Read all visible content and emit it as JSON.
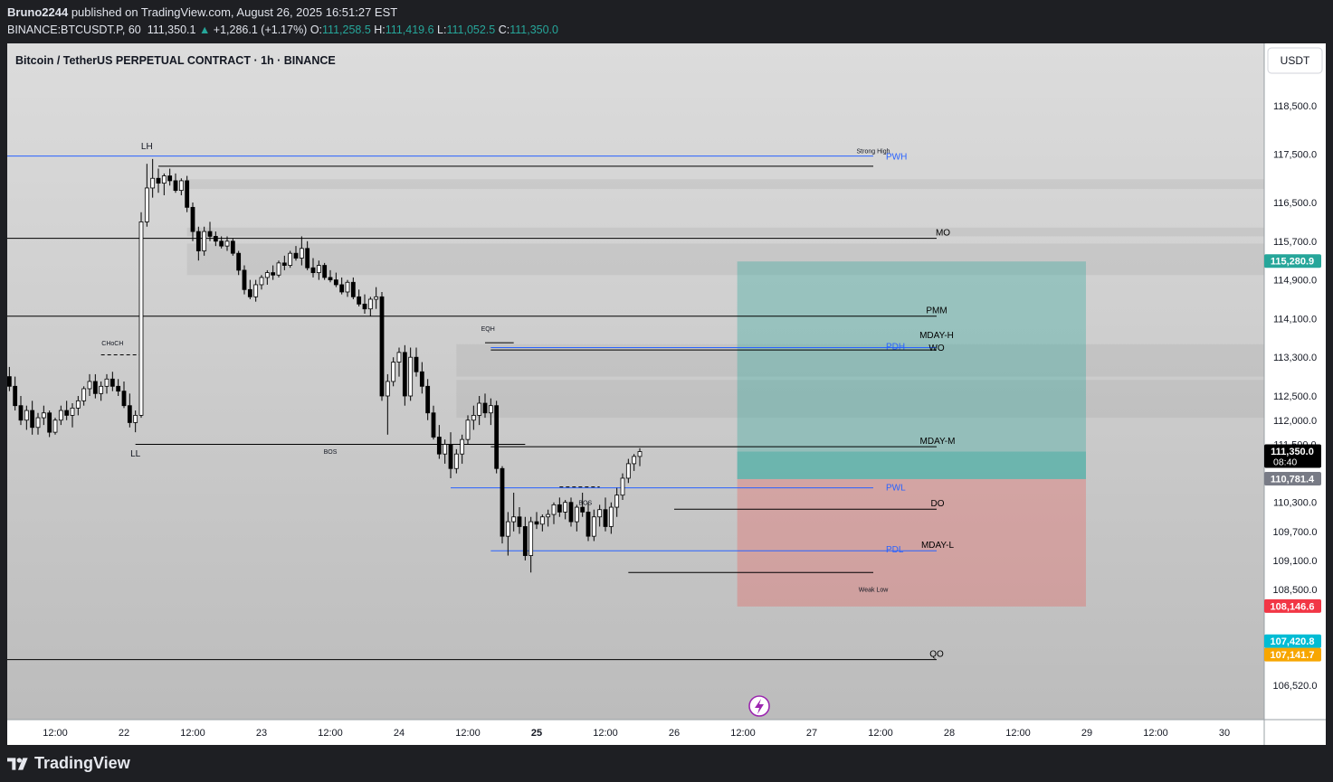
{
  "header": {
    "publisher_user": "Bruno2244",
    "publisher_text": " published on TradingView.com, August 26, 2025 16:51:27 EST",
    "symbol": "BINANCE:BTCUSDT.P, 60",
    "last": "111,350.1",
    "change": "+1,286.1 (+1.17%)",
    "open_label": "O:",
    "open": "111,258.5",
    "high_label": "H:",
    "high": "111,419.6",
    "low_label": "L:",
    "low": "111,052.5",
    "close_label": "C:",
    "close": "111,350.0"
  },
  "chart_title": "Bitcoin / TetherUS PERPETUAL CONTRACT · 1h · BINANCE",
  "currency_button": "USDT",
  "brand": "TradingView",
  "colors": {
    "up": "#ffffff",
    "down": "#000000",
    "blue_level": "#2962ff",
    "target_zone": "#26a69a",
    "stop_zone": "#ef5350",
    "badge_green": "#26a69a",
    "badge_red": "#f23645",
    "badge_cyan": "#00bcd4",
    "badge_orange": "#f7a600"
  },
  "chart_data": {
    "type": "candlestick",
    "title": "Bitcoin / TetherUS PERPETUAL CONTRACT · 1h · BINANCE",
    "ylim": [
      106000,
      119700
    ],
    "y_ticks": [
      "118,500.0",
      "117,500.0",
      "116,500.0",
      "115,700.0",
      "114,900.0",
      "114,100.0",
      "113,300.0",
      "112,500.0",
      "112,000.0",
      "111,500.0",
      "110,300.0",
      "109,700.0",
      "109,100.0",
      "108,500.0",
      "107,500.0",
      "106,520.0"
    ],
    "y_tick_values": [
      118500,
      117500,
      116500,
      115700,
      114900,
      114100,
      113300,
      112500,
      112000,
      111500,
      110300,
      109700,
      109100,
      108500,
      107500,
      106520
    ],
    "x_ticks": [
      "12:00",
      "22",
      "12:00",
      "23",
      "12:00",
      "24",
      "12:00",
      "25",
      "12:00",
      "26",
      "12:00",
      "27",
      "12:00",
      "28",
      "12:00",
      "29",
      "12:00",
      "30"
    ],
    "x_tick_hours": [
      12,
      24,
      36,
      48,
      60,
      72,
      84,
      96,
      108,
      120,
      132,
      144,
      156,
      168,
      180,
      192,
      204,
      216
    ],
    "x_tick_bold_index": 7,
    "candles": [
      [
        112700,
        112900,
        112450,
        112600
      ],
      [
        112600,
        112800,
        112300,
        112500
      ],
      [
        112500,
        112700,
        112200,
        112400
      ],
      [
        112400,
        113000,
        112300,
        112900
      ],
      [
        112900,
        113100,
        112600,
        112700
      ],
      [
        112700,
        112900,
        112200,
        112300
      ],
      [
        112300,
        112500,
        111900,
        112000
      ],
      [
        112000,
        112300,
        111800,
        112200
      ],
      [
        112200,
        112400,
        111700,
        111850
      ],
      [
        111850,
        112150,
        111700,
        112050
      ],
      [
        112050,
        112300,
        111900,
        112150
      ],
      [
        112150,
        112200,
        111650,
        111750
      ],
      [
        111750,
        112050,
        111700,
        112000
      ],
      [
        112000,
        112300,
        111900,
        112200
      ],
      [
        112200,
        112400,
        112000,
        112100
      ],
      [
        112100,
        112350,
        111850,
        112250
      ],
      [
        112250,
        112500,
        112100,
        112400
      ],
      [
        112400,
        112700,
        112300,
        112650
      ],
      [
        112650,
        112950,
        112500,
        112800
      ],
      [
        112800,
        112950,
        112450,
        112550
      ],
      [
        112550,
        112800,
        112400,
        112700
      ],
      [
        112700,
        112950,
        112550,
        112850
      ],
      [
        112850,
        113000,
        112600,
        112700
      ],
      [
        112700,
        112850,
        112500,
        112600
      ],
      [
        112600,
        112800,
        112250,
        112300
      ],
      [
        112300,
        112550,
        111850,
        111950
      ],
      [
        111950,
        112200,
        111750,
        112100
      ],
      [
        112100,
        116300,
        112050,
        116100
      ],
      [
        116100,
        117300,
        116000,
        116800
      ],
      [
        116800,
        117400,
        116600,
        117000
      ],
      [
        117000,
        117200,
        116700,
        116900
      ],
      [
        116900,
        117100,
        116650,
        117050
      ],
      [
        117050,
        117200,
        116850,
        116950
      ],
      [
        116950,
        117100,
        116700,
        116750
      ],
      [
        116750,
        117000,
        116650,
        116950
      ],
      [
        116950,
        117050,
        116300,
        116400
      ],
      [
        116400,
        116500,
        115700,
        115900
      ],
      [
        115900,
        116000,
        115300,
        115500
      ],
      [
        115500,
        116000,
        115400,
        115900
      ],
      [
        115900,
        116100,
        115700,
        115800
      ],
      [
        115800,
        115900,
        115600,
        115700
      ],
      [
        115700,
        115800,
        115550,
        115600
      ],
      [
        115600,
        115800,
        115500,
        115700
      ],
      [
        115700,
        115750,
        115400,
        115450
      ],
      [
        115450,
        115500,
        115000,
        115100
      ],
      [
        115100,
        115200,
        114600,
        114700
      ],
      [
        114700,
        114900,
        114500,
        114550
      ],
      [
        114550,
        114900,
        114450,
        114800
      ],
      [
        114800,
        115000,
        114700,
        114950
      ],
      [
        114950,
        115100,
        114800,
        115050
      ],
      [
        115050,
        115200,
        114900,
        115000
      ],
      [
        115000,
        115300,
        114950,
        115250
      ],
      [
        115250,
        115400,
        115100,
        115200
      ],
      [
        115200,
        115500,
        115150,
        115450
      ],
      [
        115450,
        115600,
        115300,
        115350
      ],
      [
        115350,
        115800,
        115200,
        115550
      ],
      [
        115550,
        115700,
        115100,
        115150
      ],
      [
        115150,
        115350,
        114950,
        115050
      ],
      [
        115050,
        115300,
        114900,
        115200
      ],
      [
        115200,
        115250,
        114900,
        114950
      ],
      [
        114950,
        115100,
        114850,
        114900
      ],
      [
        114900,
        115050,
        114750,
        114800
      ],
      [
        114800,
        114950,
        114600,
        114650
      ],
      [
        114650,
        114900,
        114550,
        114850
      ],
      [
        114850,
        114950,
        114500,
        114550
      ],
      [
        114550,
        114700,
        114350,
        114400
      ],
      [
        114400,
        114600,
        114200,
        114300
      ],
      [
        114300,
        114550,
        114150,
        114500
      ],
      [
        114500,
        114750,
        114300,
        114550
      ],
      [
        114550,
        114650,
        112400,
        112500
      ],
      [
        112500,
        112950,
        111700,
        112800
      ],
      [
        112800,
        113300,
        112700,
        113200
      ],
      [
        113200,
        113500,
        112900,
        113400
      ],
      [
        113400,
        113550,
        112300,
        112500
      ],
      [
        112500,
        113500,
        112400,
        113300
      ],
      [
        113300,
        113500,
        112900,
        113000
      ],
      [
        113000,
        113200,
        112550,
        112700
      ],
      [
        112700,
        112850,
        112000,
        112150
      ],
      [
        112150,
        112300,
        111600,
        111650
      ],
      [
        111650,
        111900,
        111200,
        111300
      ],
      [
        111300,
        111600,
        111100,
        111500
      ],
      [
        111500,
        111750,
        110800,
        111000
      ],
      [
        111000,
        111400,
        110900,
        111300
      ],
      [
        111300,
        111700,
        111100,
        111600
      ],
      [
        111600,
        112100,
        111500,
        112000
      ],
      [
        112000,
        112300,
        111800,
        112100
      ],
      [
        112100,
        112500,
        111900,
        112350
      ],
      [
        112350,
        112550,
        112050,
        112150
      ],
      [
        112150,
        112450,
        111900,
        112300
      ],
      [
        112300,
        112400,
        110900,
        111000
      ],
      [
        111000,
        111050,
        109450,
        109600
      ],
      [
        109600,
        110100,
        109200,
        109900
      ],
      [
        109900,
        110500,
        109700,
        110000
      ],
      [
        110000,
        110200,
        109650,
        109800
      ],
      [
        109800,
        110000,
        109100,
        109200
      ],
      [
        109200,
        110000,
        108850,
        109900
      ],
      [
        109900,
        110100,
        109750,
        109850
      ],
      [
        109850,
        110050,
        109700,
        110000
      ],
      [
        110000,
        110150,
        109800,
        110050
      ],
      [
        110050,
        110300,
        109850,
        110250
      ],
      [
        110250,
        110400,
        110000,
        110100
      ],
      [
        110100,
        110350,
        109950,
        110300
      ],
      [
        110300,
        110400,
        109800,
        109900
      ],
      [
        109900,
        110250,
        109700,
        110200
      ],
      [
        110200,
        110500,
        110000,
        110100
      ],
      [
        110100,
        110300,
        109500,
        109600
      ],
      [
        109600,
        110150,
        109500,
        110000
      ],
      [
        110000,
        110250,
        109800,
        110150
      ],
      [
        110150,
        110400,
        109700,
        109800
      ],
      [
        109800,
        110300,
        109650,
        110200
      ],
      [
        110200,
        110600,
        110000,
        110450
      ],
      [
        110450,
        110900,
        110350,
        110800
      ],
      [
        110800,
        111200,
        110700,
        111100
      ],
      [
        111100,
        111300,
        110950,
        111250
      ],
      [
        111250,
        111420,
        111050,
        111350
      ]
    ],
    "levels": [
      {
        "label": "PWH",
        "value": 117460,
        "color": "#2962ff"
      },
      {
        "label": "MO",
        "value": 115760,
        "color": "#000000"
      },
      {
        "label": "PMM",
        "value": 114150,
        "color": "#000000"
      },
      {
        "label": "PDH",
        "value": 113500,
        "color": "#2962ff"
      },
      {
        "label": "MDAY-H",
        "value": 113600,
        "color": "#000000"
      },
      {
        "label": "WO",
        "value": 113450,
        "color": "#000000"
      },
      {
        "label": "MDAY-M",
        "value": 111450,
        "color": "#000000"
      },
      {
        "label": "PWL",
        "value": 110600,
        "color": "#2962ff"
      },
      {
        "label": "DO",
        "value": 110160,
        "color": "#000000"
      },
      {
        "label": "PDL",
        "value": 109300,
        "color": "#2962ff"
      },
      {
        "label": "MDAY-L",
        "value": 109300,
        "color": "#000000"
      },
      {
        "label": "QO",
        "value": 107050,
        "color": "#000000"
      }
    ],
    "structure_labels": [
      "LH",
      "LL",
      "CHoCH",
      "EQH",
      "BOS",
      "BOS",
      "Strong High",
      "Weak Low"
    ],
    "price_badges": [
      {
        "text": "115,280.9",
        "value": 115280.9,
        "color": "#26a69a"
      },
      {
        "text": "111,350.0",
        "value": 111350.0,
        "color": "#000000",
        "sub": "08:40"
      },
      {
        "text": "110,781.4",
        "value": 110781.4,
        "color": "#787b86"
      },
      {
        "text": "108,146.6",
        "value": 108146.6,
        "color": "#f23645"
      },
      {
        "text": "107,420.8",
        "value": 107420.8,
        "color": "#00bcd4"
      },
      {
        "text": "107,141.7",
        "value": 107141.7,
        "color": "#f7a600"
      }
    ],
    "position": {
      "target": 115280.9,
      "entry": 110781.4,
      "stop": 108146.6
    },
    "grid": false,
    "legend": "none"
  }
}
